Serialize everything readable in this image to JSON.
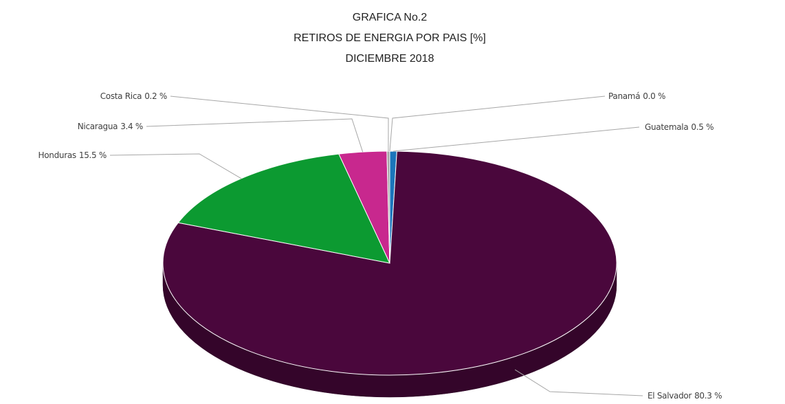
{
  "chart_data": {
    "type": "pie3d",
    "title_lines": [
      "GRAFICA No.2",
      "RETIROS DE ENERGIA POR PAIS [%]",
      "DICIEMBRE 2018"
    ],
    "categories": [
      "Guatemala",
      "El Salvador",
      "Honduras",
      "Nicaragua",
      "Costa Rica",
      "Panamá"
    ],
    "values": [
      0.5,
      80.3,
      15.5,
      3.4,
      0.2,
      0.0
    ],
    "value_labels": [
      "0.5 %",
      "80.3 %",
      "15.5 %",
      "3.4 %",
      "0.2 %",
      "0.0 %"
    ],
    "colors": [
      "#1b75bb",
      "#4a073c",
      "#0c9a31",
      "#c8288e",
      "#a6a6a6",
      "#e8e8e8"
    ]
  }
}
